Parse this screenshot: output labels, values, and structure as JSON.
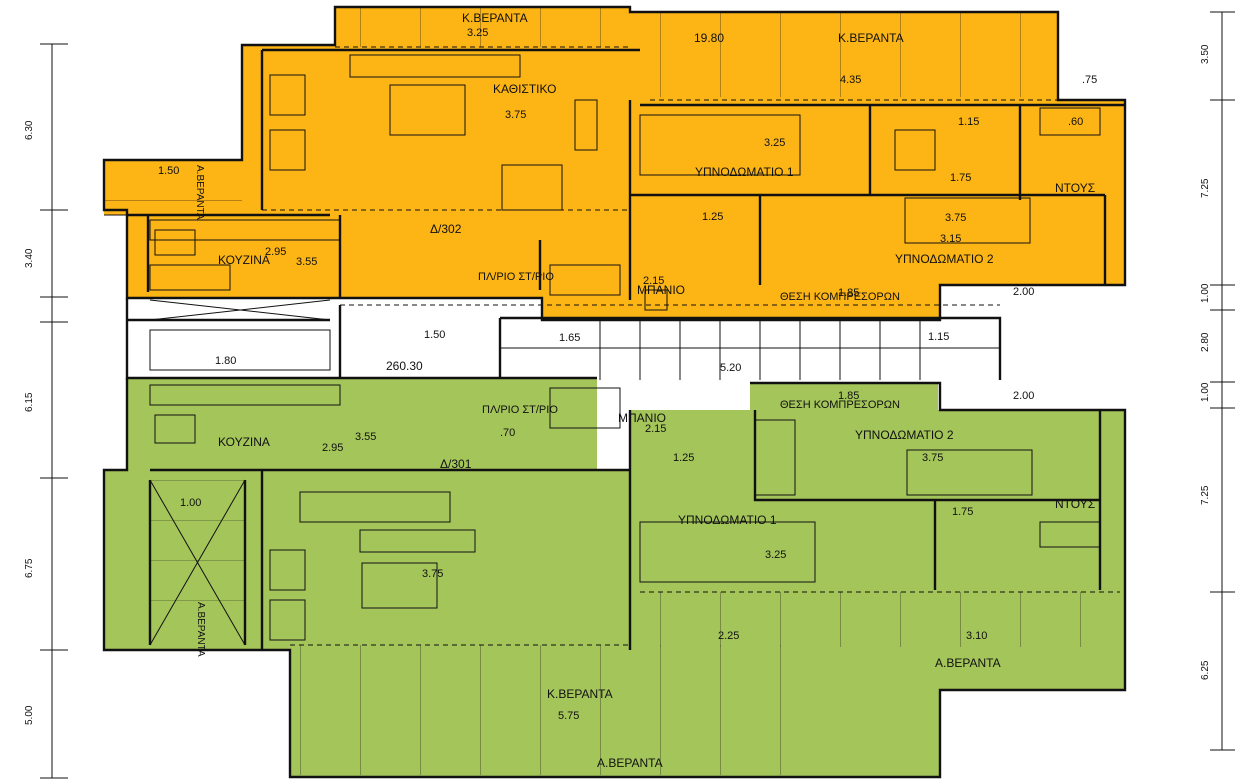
{
  "colors": {
    "upper_unit": "#FDB515",
    "lower_unit": "#A4C55A",
    "wall": "#111111",
    "background": "#FFFFFF"
  },
  "units": {
    "upper": {
      "name": "Δ/302",
      "rooms": {
        "living": "ΚΑΘΙΣΤΙΚΟ",
        "kitchen": "ΚΟΥΖΙΝΑ",
        "bedroom1": "ΥΠΝΟΔΩΜΑΤΙΟ 1",
        "bedroom2": "ΥΠΝΟΔΩΜΑΤΙΟ 2",
        "bathroom": "ΜΠΑΝΙΟ",
        "shower": "ΝΤΟΥΣ",
        "veranda_top_left": "Κ.ΒΕΡΑΝΤΑ",
        "veranda_top_right": "Κ.ΒΕΡΑΝΤΑ",
        "veranda_side": "Α.ΒΕΡΑΝΤΑ",
        "laundry": "ΠΛ/ΡΙΟ ΣΤ/ΡΙΟ",
        "compressor": "ΘΕΣΗ ΚΟΜΠΡΕΣΟΡΩΝ"
      },
      "dims": {
        "d_325_top": "3.25",
        "d_1980": "19.80",
        "d_435": "4.35",
        "d_075": ".75",
        "d_375": "3.75",
        "d_325_b1": "3.25",
        "d_115": "1.15",
        "d_060": ".60",
        "d_175": "1.75",
        "d_150": "1.50",
        "d_295": "2.95",
        "d_355": "3.55",
        "d_125": "1.25",
        "d_375_b2": "3.75",
        "d_315": "3.15",
        "d_215": "2.15",
        "d_185": "1.85",
        "d_200": "2.00"
      }
    },
    "lower": {
      "name": "Δ/301",
      "rooms": {
        "kitchen": "ΚΟΥΖΙΝΑ",
        "bathroom": "ΜΠΑΝΙΟ",
        "bedroom2": "ΥΠΝΟΔΩΜΑΤΙΟ 2",
        "bedroom1": "ΥΠΝΟΔΩΜΑΤΙΟ 1",
        "shower": "ΝΤΟΥΣ",
        "veranda_big": "Κ.ΒΕΡΑΝΤΑ",
        "veranda_right": "Α.ΒΕΡΑΝΤΑ",
        "veranda_bottom": "Α.ΒΕΡΑΝΤΑ",
        "veranda_side": "Α.ΒΕΡΑΝΤΑ",
        "laundry": "ΠΛ/ΡΙΟ ΣΤ/ΡΙΟ",
        "compressor": "ΘΕΣΗ ΚΟΜΠΡΕΣΟΡΩΝ"
      },
      "dims": {
        "d_355": "3.55",
        "d_295": "2.95",
        "d_070": ".70",
        "d_215": "2.15",
        "d_185": "1.85",
        "d_200": "2.00",
        "d_125": "1.25",
        "d_375_b2": "3.75",
        "d_175": "1.75",
        "d_100": "1.00",
        "d_375_liv": "3.75",
        "d_325_b1": "3.25",
        "d_225": "2.25",
        "d_310": "3.10",
        "d_575": "5.75"
      }
    }
  },
  "corridor": {
    "d_150": "1.50",
    "d_180": "1.80",
    "d_165": "1.65",
    "d_520": "5.20",
    "d_115": "1.15",
    "level": "260.30"
  },
  "left_axis": [
    "6.30",
    "3.40",
    "6.15",
    "6.75",
    "5.00"
  ],
  "right_axis": [
    "3.50",
    "7.25",
    "1.00",
    "2.80",
    "1.00",
    "7.25",
    "6.25"
  ]
}
